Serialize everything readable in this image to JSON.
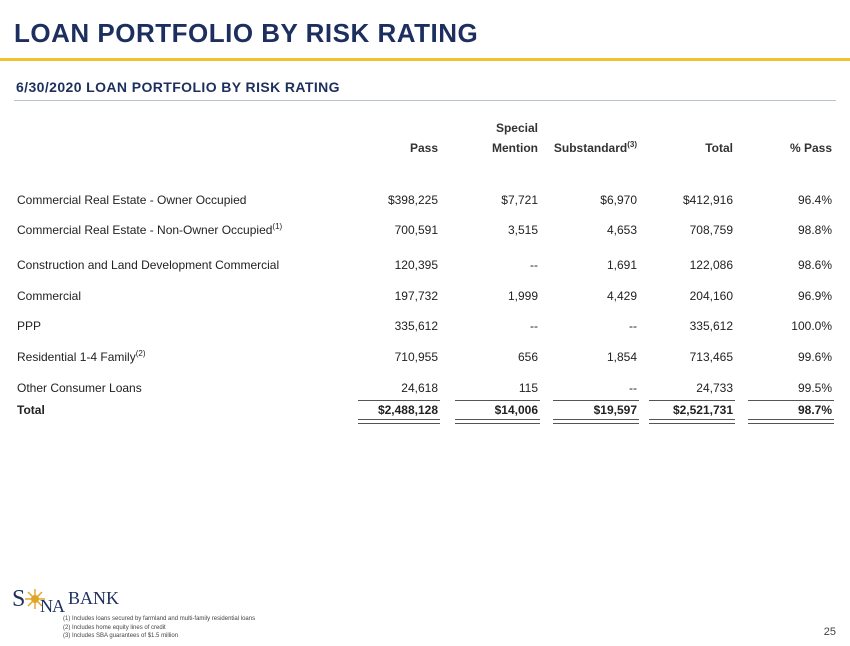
{
  "page": {
    "title": "LOAN PORTFOLIO BY RISK RATING",
    "subtitle": "6/30/2020 LOAN PORTFOLIO BY RISK RATING",
    "page_number": "25"
  },
  "table": {
    "headers": {
      "pass": "Pass",
      "special_line1": "Special",
      "special_line2": "Mention",
      "substandard": "Substandard",
      "substandard_note": "(3)",
      "total": "Total",
      "pct_pass": "% Pass"
    },
    "rows": [
      {
        "label": "Commercial Real Estate - Owner Occupied",
        "note": "",
        "pass": "$398,225",
        "special": "$7,721",
        "substandard": "$6,970",
        "total": "$412,916",
        "pct": "96.4%"
      },
      {
        "label": "Commercial Real Estate - Non-Owner Occupied",
        "note": "(1)",
        "pass": "700,591",
        "special": "3,515",
        "substandard": "4,653",
        "total": "708,759",
        "pct": "98.8%"
      },
      {
        "label": "Construction and Land Development Commercial",
        "note": "",
        "pass": "120,395",
        "special": "--",
        "substandard": "1,691",
        "total": "122,086",
        "pct": "98.6%"
      },
      {
        "label": "Commercial",
        "note": "",
        "pass": "197,732",
        "special": "1,999",
        "substandard": "4,429",
        "total": "204,160",
        "pct": "96.9%"
      },
      {
        "label": "PPP",
        "note": "",
        "pass": "335,612",
        "special": "--",
        "substandard": "--",
        "total": "335,612",
        "pct": "100.0%"
      },
      {
        "label": "Residential 1-4 Family",
        "note": "(2)",
        "pass": "710,955",
        "special": "656",
        "substandard": "1,854",
        "total": "713,465",
        "pct": "99.6%"
      },
      {
        "label": "Other Consumer Loans",
        "note": "",
        "pass": "24,618",
        "special": "115",
        "substandard": "--",
        "total": "24,733",
        "pct": "99.5%"
      }
    ],
    "total_row": {
      "label": "Total",
      "pass": "$2,488,128",
      "special": "$14,006",
      "substandard": "$19,597",
      "total": "$2,521,731",
      "pct": "98.7%"
    }
  },
  "logo": {
    "s": "S",
    "na": "NA",
    "bank": "BANK",
    "color": "#1c2f5e",
    "sun_color": "#e0a526"
  },
  "footnotes": [
    "(1) Includes loans secured by farmland and multi-family residential loans",
    "(2) Includes home equity lines of credit",
    "(3) Includes SBA guarantees of $1.5 million"
  ],
  "colors": {
    "navy": "#1c2f5e",
    "gold": "#f1c232"
  }
}
